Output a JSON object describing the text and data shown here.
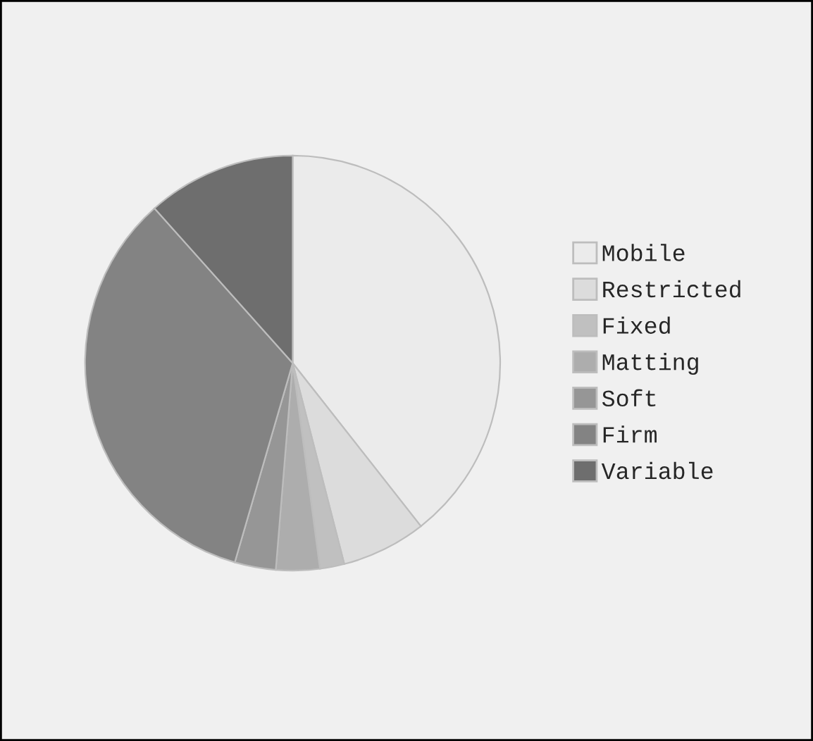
{
  "chart_data": {
    "type": "pie",
    "categories": [
      "Mobile",
      "Restricted",
      "Fixed",
      "Matting",
      "Soft",
      "Firm",
      "Variable"
    ],
    "values": [
      39.4,
      6.6,
      1.9,
      3.4,
      3.2,
      33.9,
      11.6
    ],
    "colors": [
      "#ebebeb",
      "#dcdcdc",
      "#c0c0c0",
      "#adadad",
      "#969696",
      "#838383",
      "#6e6e6e"
    ],
    "legend": "right"
  }
}
